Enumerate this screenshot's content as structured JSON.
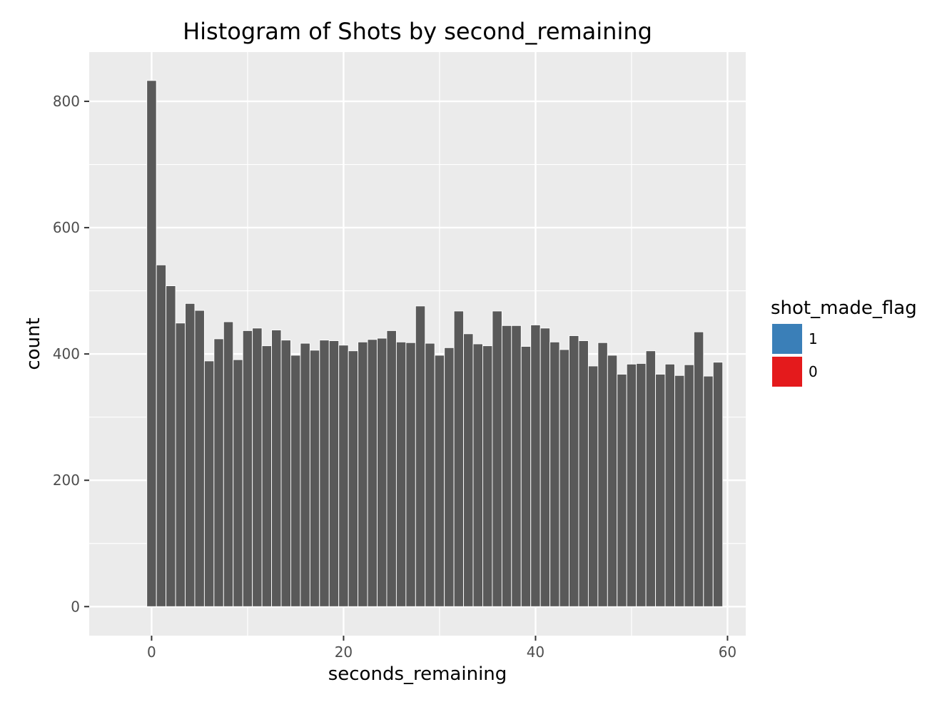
{
  "chart_data": {
    "type": "bar",
    "title": "Histogram of Shots by second_remaining",
    "xlabel": "seconds_remaining",
    "ylabel": "count",
    "x": [
      0,
      1,
      2,
      3,
      4,
      5,
      6,
      7,
      8,
      9,
      10,
      11,
      12,
      13,
      14,
      15,
      16,
      17,
      18,
      19,
      20,
      21,
      22,
      23,
      24,
      25,
      26,
      27,
      28,
      29,
      30,
      31,
      32,
      33,
      34,
      35,
      36,
      37,
      38,
      39,
      40,
      41,
      42,
      43,
      44,
      45,
      46,
      47,
      48,
      49,
      50,
      51,
      52,
      53,
      54,
      55,
      56,
      57,
      58,
      59
    ],
    "values": [
      833,
      541,
      508,
      449,
      480,
      469,
      389,
      424,
      451,
      391,
      437,
      441,
      413,
      438,
      422,
      398,
      417,
      406,
      422,
      421,
      414,
      405,
      419,
      423,
      425,
      437,
      419,
      418,
      476,
      417,
      398,
      410,
      468,
      432,
      416,
      413,
      468,
      445,
      445,
      412,
      446,
      441,
      419,
      407,
      429,
      421,
      381,
      418,
      398,
      368,
      384,
      385,
      405,
      368,
      384,
      366,
      383,
      435,
      365,
      387
    ],
    "xlim": [
      -6.5,
      61.9
    ],
    "ylim": [
      -46,
      878
    ],
    "x_ticks": [
      "0",
      "20",
      "40",
      "60"
    ],
    "y_ticks": [
      "0",
      "200",
      "400",
      "600",
      "800"
    ],
    "bar_color": "#595959",
    "panel_background": "#ebebeb",
    "grid": true,
    "legend": {
      "title": "shot_made_flag",
      "placement": "right",
      "items": [
        {
          "label": "1",
          "color": "#3a7fb8"
        },
        {
          "label": "0",
          "color": "#e41a1c"
        }
      ]
    }
  }
}
